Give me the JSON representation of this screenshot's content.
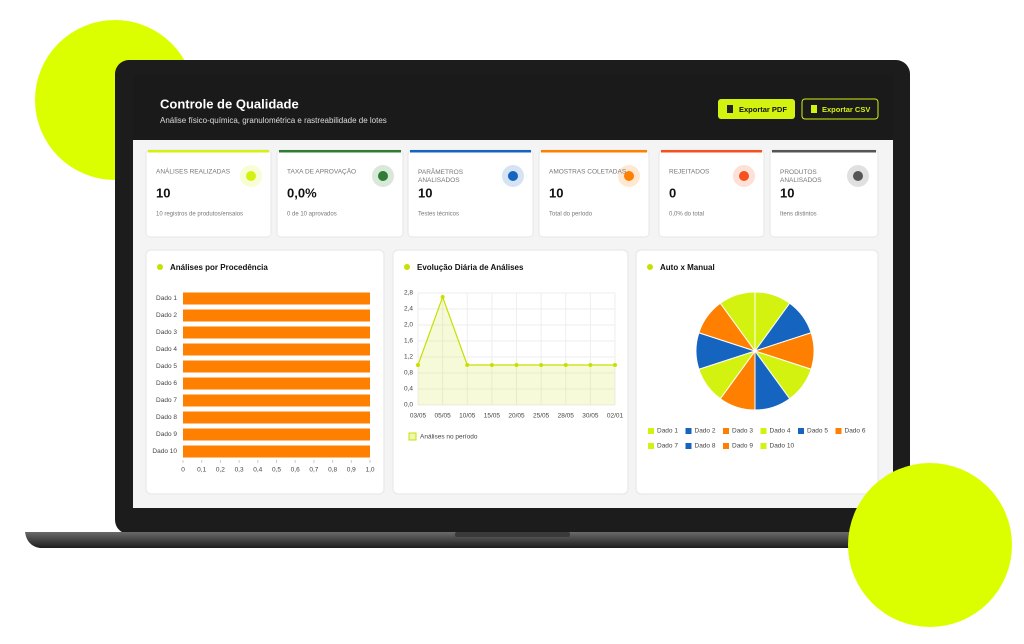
{
  "header": {
    "title": "Controle de Qualidade",
    "subtitle": "Análise físico-química, granulométrica e rastreabilidade de lotes",
    "buttons": [
      "Exportar PDF",
      "Exportar CSV"
    ]
  },
  "kpis": [
    {
      "label": "ANÁLISES REALIZADAS",
      "value": "10",
      "note": "10 registros de produtos/ensaios",
      "color": "#d4f20f"
    },
    {
      "label": "TAXA DE APROVAÇÃO",
      "value": "0,0%",
      "note": "0 de 10 aprovados",
      "color": "#2e7d32"
    },
    {
      "label": "PARÂMETROS ANALISADOS",
      "value": "10",
      "note": "Testes técnicos",
      "color": "#1565c0"
    },
    {
      "label": "AMOSTRAS COLETADAS",
      "value": "10",
      "note": "Total do período",
      "color": "#ff7f00"
    },
    {
      "label": "REJEITADOS",
      "value": "0",
      "note": "0,0% do total",
      "color": "#f4511e"
    },
    {
      "label": "PRODUTOS ANALISADOS",
      "value": "10",
      "note": "Itens distintos",
      "color": "#555555"
    }
  ],
  "bar_chart": {
    "type": "bar",
    "title": "Análises por Procedência",
    "categories": [
      "Dado 1",
      "Dado 2",
      "Dado 3",
      "Dado 4",
      "Dado 5",
      "Dado 6",
      "Dado 7",
      "Dado 8",
      "Dado 9",
      "Dado 10"
    ],
    "values": [
      1,
      1,
      1,
      1,
      1,
      1,
      1,
      1,
      1,
      1
    ],
    "color": "#ff7f00",
    "xlim": [
      0,
      1
    ],
    "xticks": [
      0,
      {
        "value": 0.1,
        "label": "0,1"
      },
      {
        "value": 0.2,
        "label": "0,2"
      },
      {
        "value": 0.3,
        "label": "0,3"
      },
      {
        "value": 0.4,
        "label": "0,4"
      },
      {
        "value": 0.5,
        "label": "0,5"
      },
      {
        "value": 0.6,
        "label": "0,6"
      },
      {
        "value": 0.7,
        "label": "0,7"
      },
      {
        "value": 0.8,
        "label": "0,8"
      },
      {
        "value": 0.9,
        "label": "0,9"
      },
      {
        "value": 1,
        "label": "1,0"
      }
    ]
  },
  "line_chart": {
    "type": "line",
    "title": "Evolução Diária de Análises",
    "categories": [
      "03/05",
      "05/05",
      "10/05",
      "15/05",
      "20/05",
      "25/05",
      "28/05",
      "30/05",
      "02/01"
    ],
    "series": [
      {
        "name": "Análises no período",
        "color": "#c8e000",
        "values": [
          1,
          2.7,
          1,
          1,
          1,
          1,
          1,
          1,
          1
        ]
      }
    ],
    "ylim": [
      0,
      2.8
    ],
    "yticks": [
      {
        "value": 0,
        "label": "0,0"
      },
      {
        "value": 0.4,
        "label": "0,4"
      },
      {
        "value": 0.8,
        "label": "0,8"
      },
      {
        "value": 1.2,
        "label": "1,2"
      },
      {
        "value": 1.6,
        "label": "1,6"
      },
      {
        "value": 2,
        "label": "2,0"
      },
      {
        "value": 2.4,
        "label": "2,4"
      },
      {
        "value": 2.8,
        "label": "2,8"
      }
    ],
    "grid": true
  },
  "pie_chart": {
    "type": "pie",
    "title": "Auto x Manual",
    "categories": [
      "Dado 1",
      "Dado 2",
      "Dado 3",
      "Dado 4",
      "Dado 5",
      "Dado 6",
      "Dado 7",
      "Dado 8",
      "Dado 9",
      "Dado 10"
    ],
    "values": [
      1,
      1,
      1,
      1,
      1,
      1,
      1,
      1,
      1,
      1
    ],
    "colors": [
      "#d4f20f",
      "#1565c0",
      "#ff7f00",
      "#d4f20f",
      "#1565c0",
      "#ff7f00",
      "#d4f20f",
      "#1565c0",
      "#ff7f00",
      "#d4f20f"
    ]
  }
}
